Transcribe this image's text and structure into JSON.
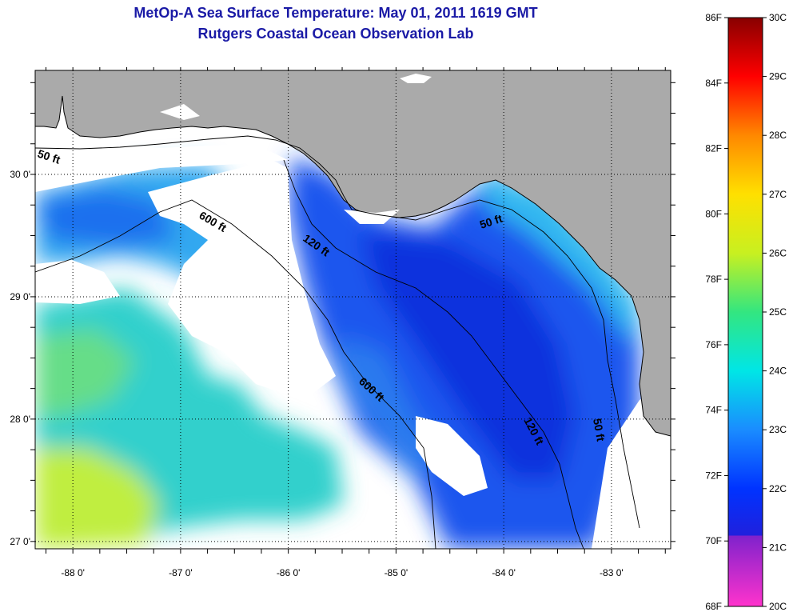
{
  "title": "MetOp-A Sea Surface Temperature:  May 01, 2011 1619 GMT",
  "subtitle": "Rutgers Coastal Ocean Observation Lab",
  "colors": {
    "land": "#aaaaaa",
    "cloud": "#ffffff",
    "frame": "#000000"
  },
  "map": {
    "lon_range": [
      -88.35,
      -82.45
    ],
    "lat_range": [
      26.94,
      30.85
    ],
    "lon_ticks": [
      {
        "value": -88,
        "label": "-88 0'"
      },
      {
        "value": -87,
        "label": "-87 0'"
      },
      {
        "value": -86,
        "label": "-86 0'"
      },
      {
        "value": -85,
        "label": "-85 0'"
      },
      {
        "value": -84,
        "label": "-84 0'"
      },
      {
        "value": -83,
        "label": "-83 0'"
      }
    ],
    "lat_ticks": [
      {
        "value": 30,
        "label": "30 0'"
      },
      {
        "value": 29,
        "label": "29 0'"
      },
      {
        "value": 28,
        "label": "28 0'"
      },
      {
        "value": 27,
        "label": "27 0'"
      }
    ],
    "contour_labels": [
      "50 ft",
      "600 ft",
      "120 ft",
      "50 ft",
      "600 ft",
      "120 ft",
      "50 ft"
    ]
  },
  "colorbar": {
    "fahrenheit_labels": [
      "86F",
      "84F",
      "82F",
      "80F",
      "78F",
      "76F",
      "74F",
      "72F",
      "70F",
      "68F"
    ],
    "celsius_labels": [
      "30C",
      "29C",
      "28C",
      "27C",
      "26C",
      "25C",
      "24C",
      "23C",
      "22C",
      "21C",
      "20C"
    ],
    "range_c": [
      20,
      30
    ]
  }
}
